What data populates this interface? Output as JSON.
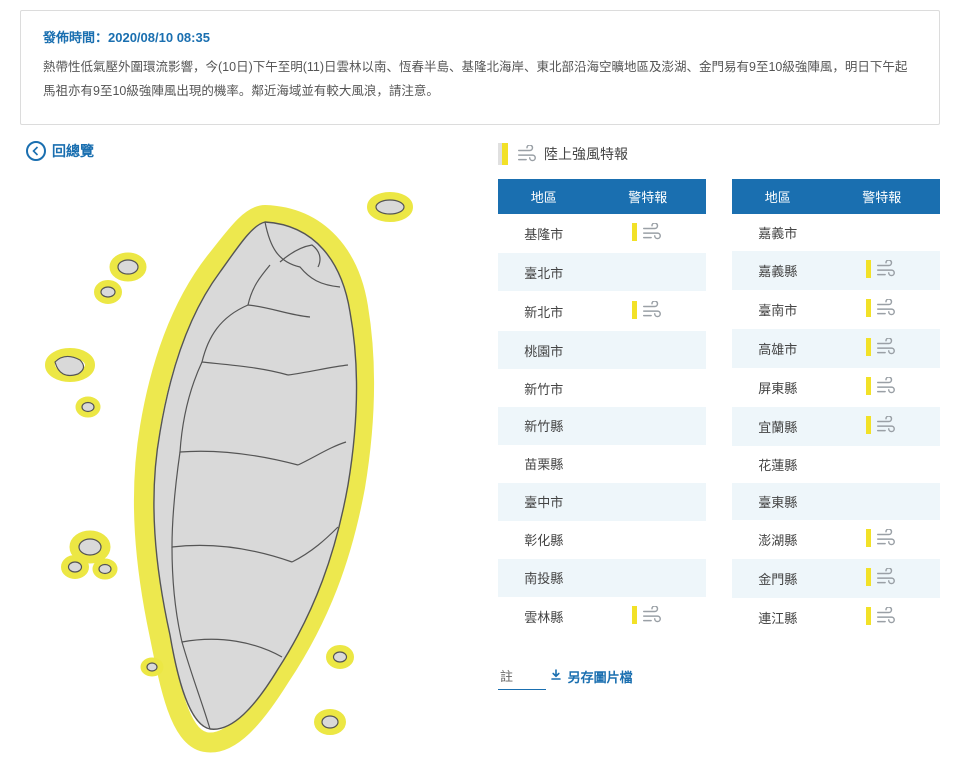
{
  "notice": {
    "time_label": "發佈時間：",
    "time_value": "2020/08/10 08:35",
    "body": "熱帶性低氣壓外圍環流影響，今(10日)下午至明(11)日雲林以南、恆春半島、基隆北海岸、東北部沿海空曠地區及澎湖、金門易有9至10級強陣風，明日下午起馬祖亦有9至10級強陣風出現的機率。鄰近海域並有較大風浪，請注意。"
  },
  "back_link": "回總覽",
  "legend_title": "陸上強風特報",
  "table_headers": {
    "area": "地區",
    "warning": "警特報"
  },
  "left_table": [
    {
      "name": "基隆市",
      "has_warning": true
    },
    {
      "name": "臺北市",
      "has_warning": false
    },
    {
      "name": "新北市",
      "has_warning": true
    },
    {
      "name": "桃園市",
      "has_warning": false
    },
    {
      "name": "新竹市",
      "has_warning": false
    },
    {
      "name": "新竹縣",
      "has_warning": false
    },
    {
      "name": "苗栗縣",
      "has_warning": false
    },
    {
      "name": "臺中市",
      "has_warning": false
    },
    {
      "name": "彰化縣",
      "has_warning": false
    },
    {
      "name": "南投縣",
      "has_warning": false
    },
    {
      "name": "雲林縣",
      "has_warning": true
    }
  ],
  "right_table": [
    {
      "name": "嘉義市",
      "has_warning": false
    },
    {
      "name": "嘉義縣",
      "has_warning": true
    },
    {
      "name": "臺南市",
      "has_warning": true
    },
    {
      "name": "高雄市",
      "has_warning": true
    },
    {
      "name": "屏東縣",
      "has_warning": true
    },
    {
      "name": "宜蘭縣",
      "has_warning": true
    },
    {
      "name": "花蓮縣",
      "has_warning": false
    },
    {
      "name": "臺東縣",
      "has_warning": false
    },
    {
      "name": "澎湖縣",
      "has_warning": true
    },
    {
      "name": "金門縣",
      "has_warning": true
    },
    {
      "name": "連江縣",
      "has_warning": true
    }
  ],
  "footer_note_label": "註",
  "download_label": "另存圖片檔",
  "colors": {
    "accent": "#1a6fb0",
    "warn_yellow": "#f2e127",
    "alt_row": "#eef6fa",
    "map_land": "#d9d9d9",
    "map_stroke": "#555555",
    "map_halo": "#ece744"
  }
}
